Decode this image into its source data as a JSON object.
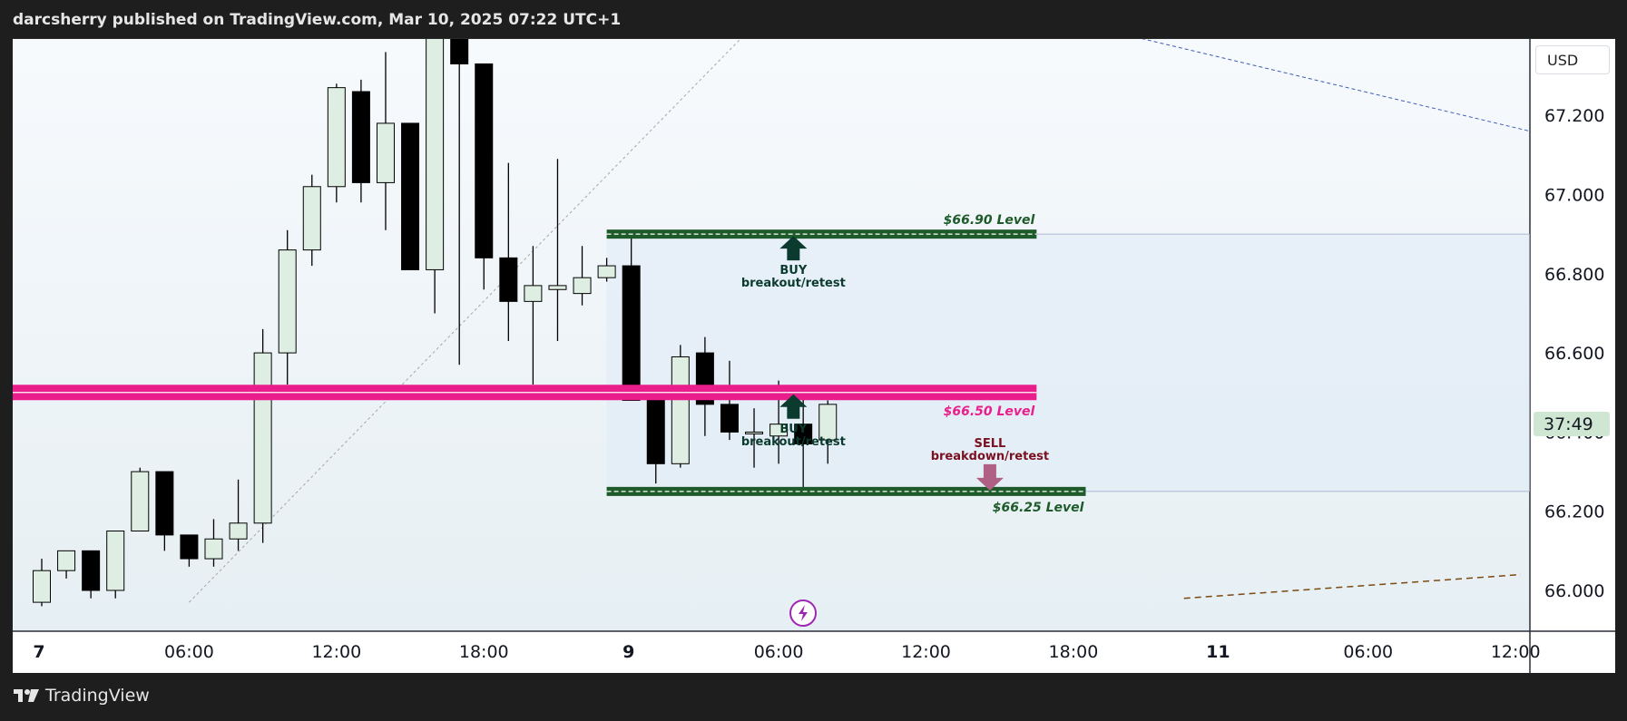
{
  "header": {
    "published": "darcsherry published on TradingView.com, Mar 10, 2025 07:22 UTC+1"
  },
  "footer": {
    "brand": "TradingView"
  },
  "currency": "USD",
  "countdown": "37:49",
  "colors": {
    "bull_fill": "#dfeee2",
    "bear_fill": "#000000",
    "green_band": "#1e5b2a",
    "pink_band": "#e91e8c",
    "buy_arrow": "#0b3b2e",
    "sell_arrow": "#b05f85",
    "sell_text": "#7a1020",
    "bg_top": "#f7fafd",
    "bg_bottom": "#e6eff3"
  },
  "chart_data": {
    "type": "candlestick",
    "y_ticks": [
      "67.200",
      "67.000",
      "66.800",
      "66.600",
      "66.400",
      "66.200",
      "66.000"
    ],
    "ylim": [
      65.98,
      67.45
    ],
    "x_ticks": [
      {
        "label": "7",
        "t": 0
      },
      {
        "label": "06:00",
        "t": 6
      },
      {
        "label": "12:00",
        "t": 12
      },
      {
        "label": "18:00",
        "t": 18
      },
      {
        "label": "9",
        "t": 24
      },
      {
        "label": "06:00",
        "t": 30
      },
      {
        "label": "12:00",
        "t": 36
      },
      {
        "label": "18:00",
        "t": 42
      },
      {
        "label": "11",
        "t": 48
      },
      {
        "label": "06:00",
        "t": 54
      },
      {
        "label": "12:00",
        "t": 60
      }
    ],
    "candles": [
      {
        "t": 0,
        "o": 65.97,
        "h": 66.08,
        "l": 65.96,
        "c": 66.05
      },
      {
        "t": 1,
        "o": 66.05,
        "h": 66.1,
        "l": 66.03,
        "c": 66.1
      },
      {
        "t": 2,
        "o": 66.1,
        "h": 66.1,
        "l": 65.98,
        "c": 66.0
      },
      {
        "t": 3,
        "o": 66.0,
        "h": 66.15,
        "l": 65.98,
        "c": 66.15
      },
      {
        "t": 4,
        "o": 66.15,
        "h": 66.31,
        "l": 66.15,
        "c": 66.3
      },
      {
        "t": 5,
        "o": 66.3,
        "h": 66.3,
        "l": 66.1,
        "c": 66.14
      },
      {
        "t": 6,
        "o": 66.14,
        "h": 66.14,
        "l": 66.06,
        "c": 66.08
      },
      {
        "t": 7,
        "o": 66.08,
        "h": 66.18,
        "l": 66.06,
        "c": 66.13
      },
      {
        "t": 8,
        "o": 66.13,
        "h": 66.28,
        "l": 66.1,
        "c": 66.17
      },
      {
        "t": 9,
        "o": 66.17,
        "h": 66.66,
        "l": 66.12,
        "c": 66.6
      },
      {
        "t": 10,
        "o": 66.6,
        "h": 66.91,
        "l": 66.52,
        "c": 66.86
      },
      {
        "t": 11,
        "o": 66.86,
        "h": 67.05,
        "l": 66.82,
        "c": 67.02
      },
      {
        "t": 12,
        "o": 67.02,
        "h": 67.28,
        "l": 66.98,
        "c": 67.27
      },
      {
        "t": 13,
        "o": 67.26,
        "h": 67.29,
        "l": 66.98,
        "c": 67.03
      },
      {
        "t": 14,
        "o": 67.03,
        "h": 67.36,
        "l": 66.91,
        "c": 67.18
      },
      {
        "t": 15,
        "o": 67.18,
        "h": 67.18,
        "l": 66.81,
        "c": 66.81
      },
      {
        "t": 16,
        "o": 66.81,
        "h": 67.45,
        "l": 66.7,
        "c": 67.4
      },
      {
        "t": 17,
        "o": 67.4,
        "h": 67.45,
        "l": 66.57,
        "c": 67.33
      },
      {
        "t": 18,
        "o": 67.33,
        "h": 67.33,
        "l": 66.76,
        "c": 66.84
      },
      {
        "t": 19,
        "o": 66.84,
        "h": 67.08,
        "l": 66.63,
        "c": 66.73
      },
      {
        "t": 20,
        "o": 66.73,
        "h": 66.87,
        "l": 66.52,
        "c": 66.77
      },
      {
        "t": 21,
        "o": 66.76,
        "h": 67.09,
        "l": 66.63,
        "c": 66.77
      },
      {
        "t": 22,
        "o": 66.75,
        "h": 66.87,
        "l": 66.72,
        "c": 66.79
      },
      {
        "t": 23,
        "o": 66.79,
        "h": 66.84,
        "l": 66.78,
        "c": 66.82
      },
      {
        "t": 24,
        "o": 66.82,
        "h": 66.9,
        "l": 66.48,
        "c": 66.48
      },
      {
        "t": 25,
        "o": 66.48,
        "h": 66.5,
        "l": 66.27,
        "c": 66.32
      },
      {
        "t": 26,
        "o": 66.32,
        "h": 66.62,
        "l": 66.31,
        "c": 66.59
      },
      {
        "t": 27,
        "o": 66.6,
        "h": 66.64,
        "l": 66.39,
        "c": 66.47
      },
      {
        "t": 28,
        "o": 66.47,
        "h": 66.58,
        "l": 66.38,
        "c": 66.4
      },
      {
        "t": 29,
        "o": 66.4,
        "h": 66.46,
        "l": 66.31,
        "c": 66.4
      },
      {
        "t": 30,
        "o": 66.39,
        "h": 66.53,
        "l": 66.32,
        "c": 66.42
      },
      {
        "t": 31,
        "o": 66.42,
        "h": 66.51,
        "l": 66.26,
        "c": 66.37
      },
      {
        "t": 32,
        "o": 66.38,
        "h": 66.48,
        "l": 66.32,
        "c": 66.47
      }
    ],
    "levels": [
      {
        "label": "$66.90 Level",
        "value": 66.9,
        "color": "#1e5b2a"
      },
      {
        "label": "$66.50 Level",
        "value": 66.5,
        "color": "#e91e8c"
      },
      {
        "label": "$66.25 Level",
        "value": 66.25,
        "color": "#1e5b2a"
      }
    ],
    "annotations": [
      {
        "line1": "BUY",
        "line2": "breakout/retest",
        "t": 30.6,
        "price": 66.9,
        "side": "buy"
      },
      {
        "line1": "BUY",
        "line2": "breakout/retest",
        "t": 30.6,
        "price": 66.5,
        "side": "buy"
      },
      {
        "line1": "SELL",
        "line2": "breakdown/retest",
        "t": 38.6,
        "price": 66.25,
        "side": "sell"
      }
    ],
    "grid": false,
    "legend": "none"
  }
}
